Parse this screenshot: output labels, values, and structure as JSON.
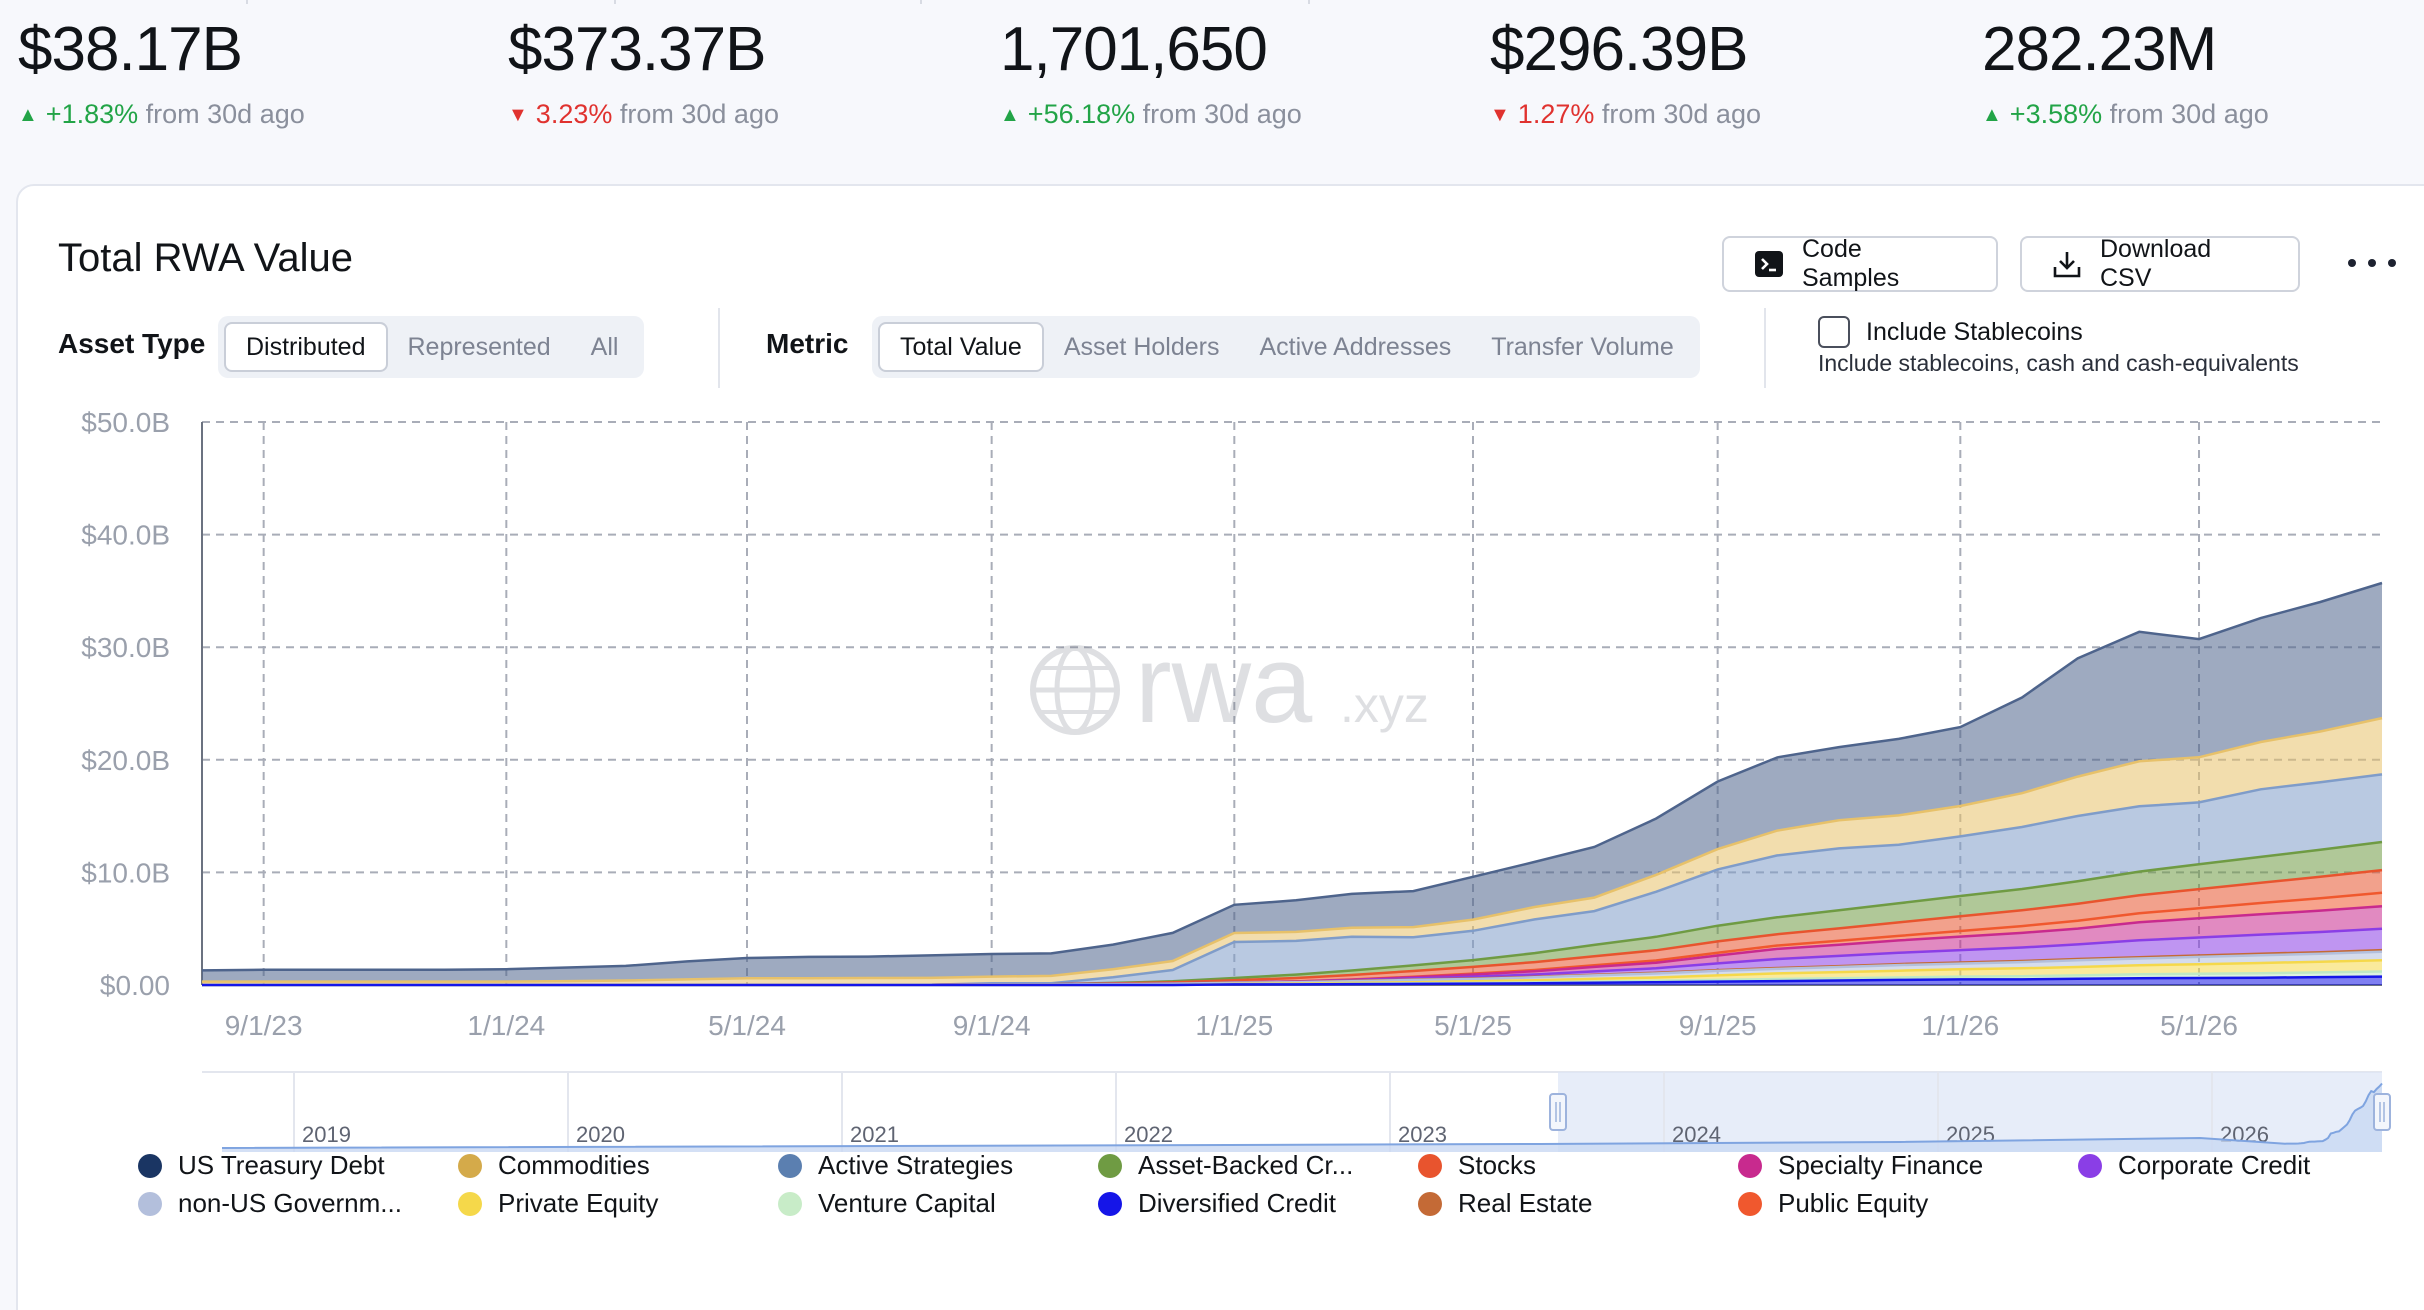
{
  "stats": [
    {
      "value": "$38.17B",
      "direction": "up",
      "change": "+1.83%",
      "suffix": "from 30d ago"
    },
    {
      "value": "$373.37B",
      "direction": "down",
      "change": "3.23%",
      "suffix": "from 30d ago"
    },
    {
      "value": "1,701,650",
      "direction": "up",
      "change": "+56.18%",
      "suffix": "from 30d ago"
    },
    {
      "value": "$296.39B",
      "direction": "down",
      "change": "1.27%",
      "suffix": "from 30d ago"
    },
    {
      "value": "282.23M",
      "direction": "up",
      "change": "+3.58%",
      "suffix": "from 30d ago"
    }
  ],
  "card": {
    "title": "Total RWA Value",
    "code_samples_label": "Code Samples",
    "download_csv_label": "Download CSV",
    "asset_type_label": "Asset Type",
    "asset_type_options": [
      "Distributed",
      "Represented",
      "All"
    ],
    "metric_label": "Metric",
    "metric_options": [
      "Total Value",
      "Asset Holders",
      "Active Addresses",
      "Transfer Volume"
    ],
    "include_stablecoins_label": "Include Stablecoins",
    "include_stablecoins_sub": "Include stablecoins, cash and cash-equivalents",
    "watermark": "rwa",
    "watermark_suffix": ".xyz"
  },
  "chart_data": {
    "type": "area",
    "stacked": true,
    "grid": true,
    "y_ticks": [
      "$0.00",
      "$10.0B",
      "$20.0B",
      "$30.0B",
      "$40.0B",
      "$50.0B"
    ],
    "x_ticks": [
      "9/1/23",
      "1/1/24",
      "5/1/24",
      "9/1/24",
      "1/1/25",
      "5/1/25",
      "9/1/25",
      "1/1/26",
      "5/1/26"
    ],
    "ylim": [
      0,
      50
    ],
    "y_unit": "B",
    "navigator_years": [
      "2019",
      "2020",
      "2021",
      "2022",
      "2023",
      "2024",
      "2025",
      "2026"
    ],
    "legend_placement": "bottom",
    "x": [
      "2023-08-01",
      "2023-09-01",
      "2023-10-01",
      "2023-11-01",
      "2023-12-01",
      "2024-01-01",
      "2024-02-01",
      "2024-03-01",
      "2024-04-01",
      "2024-05-01",
      "2024-06-01",
      "2024-07-01",
      "2024-08-01",
      "2024-09-01",
      "2024-10-01",
      "2024-11-01",
      "2024-12-01",
      "2025-01-01",
      "2025-02-01",
      "2025-03-01",
      "2025-04-01",
      "2025-05-01",
      "2025-06-01",
      "2025-07-01",
      "2025-08-01",
      "2025-09-01",
      "2025-10-01",
      "2025-11-01",
      "2025-12-01",
      "2026-01-01",
      "2026-02-01",
      "2026-03-01",
      "2026-04-01",
      "2026-05-01",
      "2026-06-01",
      "2026-07-01",
      "2026-08-01"
    ],
    "series": [
      {
        "name": "Diversified Credit",
        "color": "#1515e8",
        "values": [
          0,
          0,
          0,
          0,
          0,
          0,
          0,
          0,
          0,
          0,
          0,
          0,
          0,
          0,
          0,
          0,
          0,
          0.05,
          0.05,
          0.08,
          0.1,
          0.12,
          0.15,
          0.2,
          0.25,
          0.3,
          0.35,
          0.4,
          0.45,
          0.5,
          0.5,
          0.55,
          0.6,
          0.62,
          0.65,
          0.7,
          0.75
        ]
      },
      {
        "name": "Venture Capital",
        "color": "#bfe8c4",
        "values": [
          0,
          0,
          0,
          0,
          0,
          0,
          0,
          0,
          0,
          0,
          0,
          0,
          0,
          0,
          0,
          0,
          0,
          0.02,
          0.02,
          0.03,
          0.05,
          0.06,
          0.08,
          0.1,
          0.12,
          0.15,
          0.18,
          0.2,
          0.22,
          0.25,
          0.28,
          0.3,
          0.35,
          0.38,
          0.4,
          0.42,
          0.45
        ]
      },
      {
        "name": "Private Equity",
        "color": "#f5d84a",
        "values": [
          0,
          0,
          0,
          0,
          0,
          0,
          0,
          0,
          0,
          0,
          0,
          0,
          0,
          0,
          0,
          0,
          0.01,
          0.03,
          0.05,
          0.08,
          0.1,
          0.15,
          0.2,
          0.25,
          0.3,
          0.4,
          0.5,
          0.55,
          0.6,
          0.65,
          0.7,
          0.75,
          0.8,
          0.85,
          0.9,
          0.95,
          1.0
        ]
      },
      {
        "name": "non-US Government Debt",
        "color": "#b3bfdc",
        "values": [
          0,
          0,
          0,
          0,
          0,
          0,
          0,
          0,
          0,
          0,
          0,
          0.02,
          0.03,
          0.05,
          0.05,
          0.08,
          0.1,
          0.1,
          0.12,
          0.15,
          0.2,
          0.2,
          0.25,
          0.3,
          0.35,
          0.4,
          0.4,
          0.45,
          0.5,
          0.5,
          0.55,
          0.6,
          0.6,
          0.65,
          0.7,
          0.7,
          0.75
        ]
      },
      {
        "name": "Real Estate",
        "color": "#c46a36",
        "values": [
          0,
          0,
          0,
          0,
          0,
          0,
          0,
          0,
          0,
          0,
          0,
          0,
          0,
          0,
          0.01,
          0.01,
          0.02,
          0.02,
          0.03,
          0.03,
          0.04,
          0.05,
          0.05,
          0.06,
          0.06,
          0.07,
          0.08,
          0.08,
          0.09,
          0.1,
          0.1,
          0.11,
          0.12,
          0.12,
          0.13,
          0.14,
          0.15
        ]
      },
      {
        "name": "Corporate Credit",
        "color": "#8a3ee6",
        "values": [
          0,
          0,
          0,
          0,
          0,
          0,
          0,
          0,
          0,
          0,
          0,
          0,
          0,
          0,
          0,
          0,
          0,
          0,
          0.02,
          0.05,
          0.1,
          0.15,
          0.2,
          0.3,
          0.4,
          0.6,
          0.8,
          0.9,
          1.0,
          1.1,
          1.2,
          1.3,
          1.5,
          1.6,
          1.7,
          1.8,
          1.9
        ]
      },
      {
        "name": "Specialty Finance",
        "color": "#c82a8e",
        "values": [
          0,
          0,
          0,
          0,
          0,
          0,
          0,
          0,
          0,
          0,
          0,
          0,
          0,
          0,
          0,
          0,
          0,
          0,
          0.02,
          0.05,
          0.1,
          0.2,
          0.3,
          0.4,
          0.5,
          0.7,
          0.9,
          1.0,
          1.1,
          1.2,
          1.3,
          1.4,
          1.6,
          1.7,
          1.8,
          1.9,
          2.0
        ]
      },
      {
        "name": "Public Equity",
        "color": "#f0582e",
        "values": [
          0,
          0,
          0,
          0,
          0,
          0,
          0,
          0,
          0,
          0,
          0,
          0,
          0,
          0,
          0,
          0,
          0,
          0,
          0.01,
          0.02,
          0.05,
          0.08,
          0.1,
          0.15,
          0.2,
          0.25,
          0.3,
          0.35,
          0.4,
          0.5,
          0.6,
          0.7,
          0.8,
          0.9,
          1.0,
          1.1,
          1.2
        ]
      },
      {
        "name": "Stocks",
        "color": "#e8542e",
        "values": [
          0,
          0,
          0,
          0,
          0,
          0,
          0,
          0,
          0,
          0,
          0,
          0,
          0,
          0,
          0,
          0.05,
          0.1,
          0.2,
          0.3,
          0.4,
          0.5,
          0.6,
          0.7,
          0.8,
          0.9,
          1.0,
          1.0,
          1.1,
          1.2,
          1.3,
          1.4,
          1.5,
          1.6,
          1.7,
          1.8,
          1.9,
          2.0
        ]
      },
      {
        "name": "Asset-Backed Credit",
        "color": "#6f9b43",
        "values": [
          0,
          0,
          0,
          0,
          0,
          0,
          0,
          0,
          0,
          0,
          0,
          0,
          0,
          0,
          0,
          0.05,
          0.1,
          0.2,
          0.3,
          0.4,
          0.5,
          0.6,
          0.8,
          1.0,
          1.2,
          1.4,
          1.5,
          1.6,
          1.7,
          1.8,
          1.9,
          2.0,
          2.1,
          2.2,
          2.3,
          2.4,
          2.5
        ]
      },
      {
        "name": "Active Strategies",
        "color": "#7f9cc9",
        "values": [
          0,
          0,
          0,
          0,
          0,
          0,
          0,
          0,
          0,
          0,
          0,
          0,
          0,
          0.1,
          0.1,
          0.5,
          1.0,
          3.2,
          3.0,
          3.0,
          2.5,
          2.6,
          3.0,
          3.0,
          4.0,
          5.0,
          5.5,
          5.5,
          5.2,
          5.3,
          5.5,
          5.8,
          5.8,
          5.5,
          6.0,
          6.0,
          6.0
        ]
      },
      {
        "name": "Commodities",
        "color": "#e7c16a",
        "values": [
          0.3,
          0.3,
          0.3,
          0.3,
          0.3,
          0.3,
          0.35,
          0.4,
          0.5,
          0.6,
          0.6,
          0.6,
          0.6,
          0.6,
          0.65,
          0.7,
          0.8,
          0.8,
          0.8,
          0.8,
          0.9,
          1.0,
          1.1,
          1.2,
          1.5,
          1.8,
          2.2,
          2.5,
          2.6,
          2.7,
          3.0,
          3.5,
          4.0,
          4.0,
          4.2,
          4.5,
          5.0
        ]
      },
      {
        "name": "US Treasury Debt",
        "color": "#4e648c",
        "values": [
          1.0,
          1.05,
          1.05,
          1.05,
          1.05,
          1.1,
          1.2,
          1.3,
          1.6,
          1.8,
          1.9,
          1.9,
          2.0,
          2.0,
          2.0,
          2.2,
          2.5,
          2.5,
          2.8,
          3.0,
          3.2,
          3.8,
          4.0,
          4.5,
          5.0,
          6.0,
          6.5,
          6.5,
          6.8,
          7.0,
          8.5,
          10.5,
          11.5,
          10.5,
          11.0,
          11.5,
          12.0
        ]
      }
    ],
    "legend": [
      "US Treasury Debt",
      "Commodities",
      "Active Strategies",
      "Asset-Backed Cr...",
      "Stocks",
      "Specialty Finance",
      "Corporate Credit",
      "non-US Governm...",
      "Private Equity",
      "Venture Capital",
      "Diversified Credit",
      "Real Estate",
      "Public Equity"
    ],
    "legend_colors": [
      "#1a3563",
      "#d4aa4a",
      "#5b7fb0",
      "#6f9b43",
      "#e8542e",
      "#c82a8e",
      "#8a3ee6",
      "#b3bfdc",
      "#f5d84a",
      "#c8ecc8",
      "#1515e8",
      "#c46a36",
      "#f0582e"
    ]
  }
}
